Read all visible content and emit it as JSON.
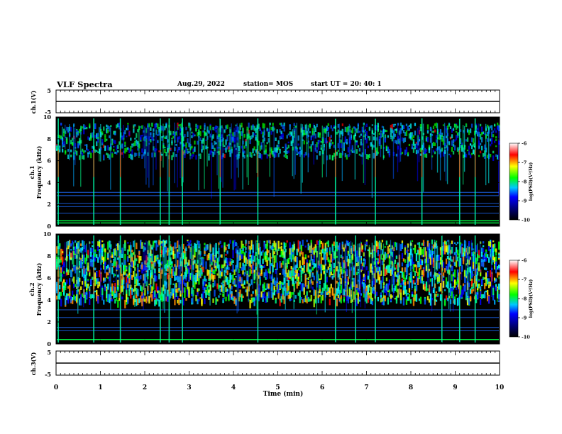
{
  "header": {
    "title": "VLF Spectra",
    "date": "Aug.29, 2022",
    "station": "station= MOS",
    "start_ut": "start  UT  =   20: 40: 1"
  },
  "chart_data": [
    {
      "type": "line",
      "name": "ch1-voltage",
      "ylabel": "ch.1(V)",
      "ylim": [
        -5,
        5
      ],
      "yticks": [
        "5",
        "-5"
      ],
      "x": [
        0,
        10
      ],
      "values": [
        0,
        0
      ]
    },
    {
      "type": "heatmap",
      "name": "ch1-spectrogram",
      "ylabel_top": "ch.1",
      "ylabel": "Frequency (kHz)",
      "ylim": [
        0,
        10
      ],
      "yticks": [
        "0",
        "2",
        "4",
        "6",
        "8",
        "10"
      ],
      "xlim": [
        0,
        10
      ],
      "colorbar": {
        "label": "log(PSD)(V²/Hz)",
        "range": [
          -10,
          -6
        ],
        "ticks": [
          "-6",
          "-7",
          "-8",
          "-9",
          "-10"
        ]
      },
      "band_kHz": [
        4,
        9.5
      ],
      "horizontal_lines_kHz": [
        0.3,
        0.5,
        1.2,
        1.8,
        2.1,
        2.8,
        3.1
      ],
      "spike_times_min": [
        0.05,
        0.85,
        1.45,
        2.35,
        2.55,
        2.85,
        3.7,
        4.55,
        6.3,
        7.2,
        8.25,
        9.1,
        9.45
      ]
    },
    {
      "type": "heatmap",
      "name": "ch2-spectrogram",
      "ylabel_top": "ch.2",
      "ylabel": "Frequency (kHz)",
      "ylim": [
        0,
        10
      ],
      "yticks": [
        "0",
        "2",
        "4",
        "6",
        "8",
        "10"
      ],
      "xlim": [
        0,
        10
      ],
      "colorbar": {
        "label": "log(PSD)(V²/Hz)",
        "range": [
          -10,
          -6
        ],
        "ticks": [
          "-6",
          "-7",
          "-8",
          "-9",
          "-10"
        ]
      },
      "band_kHz": [
        4,
        9.5
      ],
      "horizontal_lines_kHz": [
        0.4,
        1.2,
        1.5,
        2.4,
        3.1
      ],
      "spike_times_min": [
        0.05,
        0.85,
        1.45,
        2.35,
        2.55,
        2.85,
        4.55,
        6.3,
        6.75,
        7.2,
        8.7,
        9.1,
        9.45
      ]
    },
    {
      "type": "line",
      "name": "ch3-voltage",
      "ylabel": "ch.3(V)",
      "ylim": [
        -5,
        5
      ],
      "yticks": [
        "5",
        "-5"
      ],
      "x": [
        0,
        10
      ],
      "values": [
        0,
        0
      ]
    }
  ],
  "x_axis": {
    "label": "Time  (min)",
    "ticks": [
      "0",
      "1",
      "2",
      "3",
      "4",
      "5",
      "6",
      "7",
      "8",
      "9",
      "10"
    ],
    "range": [
      0,
      10
    ]
  }
}
